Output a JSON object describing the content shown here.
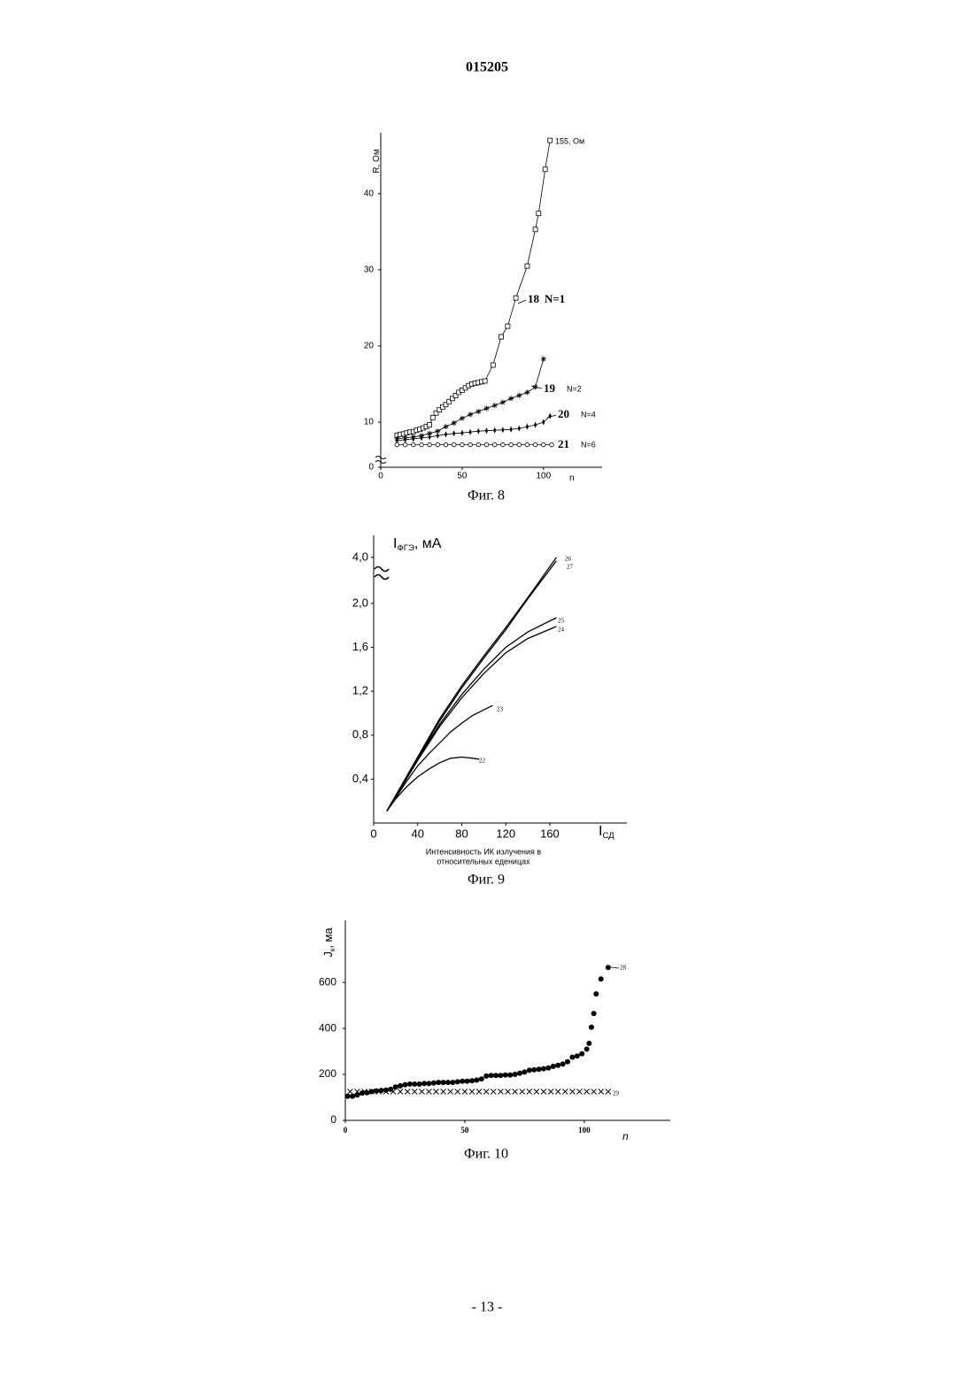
{
  "header": {
    "number": "015205"
  },
  "chart_data": [
    {
      "type": "line",
      "caption": "Фиг. 8",
      "ylabel": "R, Ом",
      "xlabel": "n",
      "annotation": "155, Ом",
      "xlim": [
        0,
        136
      ],
      "ylim": [
        0,
        48
      ],
      "y_break": [
        0,
        10
      ],
      "xticks": [
        0,
        50,
        100
      ],
      "yticks": [
        0,
        10,
        20,
        30,
        40
      ],
      "series": [
        {
          "name": "18",
          "note": "N=1",
          "marker": "square",
          "color": "#000000",
          "x": [
            10,
            12,
            14,
            16,
            18,
            20,
            22,
            24,
            26,
            28,
            30,
            32,
            34,
            36,
            38,
            40,
            42,
            44,
            46,
            48,
            50,
            52,
            54,
            56,
            58,
            60,
            62,
            64,
            69,
            74,
            78,
            83,
            90,
            95,
            97,
            101,
            104
          ],
          "values": [
            7.1,
            7.3,
            7.4,
            7.6,
            7.8,
            7.9,
            8.2,
            8.4,
            8.7,
            9.0,
            9.4,
            10.6,
            11.2,
            11.6,
            12.0,
            12.3,
            12.7,
            13.1,
            13.5,
            13.9,
            14.2,
            14.5,
            14.8,
            15.0,
            15.1,
            15.2,
            15.3,
            15.4,
            17.5,
            21.2,
            22.6,
            26.3,
            30.5,
            35.3,
            37.4,
            43.2,
            47
          ]
        },
        {
          "name": "19",
          "note": "N=2",
          "marker": "asterisk",
          "color": "#000000",
          "x": [
            10,
            15,
            20,
            25,
            30,
            35,
            40,
            45,
            50,
            55,
            60,
            65,
            70,
            75,
            80,
            85,
            90,
            95,
            100
          ],
          "values": [
            6.3,
            6.5,
            6.7,
            7.0,
            7.5,
            8.0,
            9.0,
            9.8,
            10.5,
            11.0,
            11.4,
            11.8,
            12.2,
            12.6,
            13.1,
            13.5,
            13.9,
            14.6,
            18.3
          ]
        },
        {
          "name": "20",
          "note": "N=4",
          "marker": "diamond",
          "color": "#000000",
          "x": [
            10,
            15,
            20,
            25,
            30,
            35,
            40,
            45,
            50,
            55,
            60,
            65,
            70,
            75,
            80,
            85,
            90,
            95,
            100,
            104
          ],
          "values": [
            5.9,
            6.1,
            6.3,
            6.5,
            6.7,
            7.0,
            7.3,
            7.5,
            7.6,
            7.8,
            8.0,
            8.1,
            8.2,
            8.3,
            8.4,
            8.6,
            9.0,
            9.4,
            10.0,
            10.8
          ]
        },
        {
          "name": "21",
          "note": "N=6",
          "marker": "circle",
          "color": "#000000",
          "x": [
            10,
            15,
            20,
            25,
            30,
            35,
            40,
            45,
            50,
            55,
            60,
            65,
            70,
            75,
            80,
            85,
            90,
            95,
            100,
            105
          ],
          "values": [
            5.0,
            5.0,
            5.0,
            5.0,
            5.0,
            5.0,
            5.0,
            5.0,
            5.0,
            5.0,
            5.0,
            5.0,
            5.0,
            5.0,
            5.0,
            5.0,
            5.0,
            5.0,
            5.0,
            5.0
          ]
        }
      ]
    },
    {
      "type": "line",
      "caption": "Фиг. 9",
      "ylabel": "I",
      "ylabel_sub": "ФГЭ",
      "ylabel_unit": ", мА",
      "xlabel": "I",
      "xlabel_sub": "СД",
      "xlabel_note": [
        "Интенсивность ИК излучения в",
        "относительных еденицах"
      ],
      "xlim": [
        0,
        230
      ],
      "ylim": [
        0,
        4.2
      ],
      "y_break": [
        2.0,
        4.0
      ],
      "xticks": [
        0,
        40,
        80,
        120,
        160
      ],
      "yticks": [
        {
          "value": 0.4,
          "label": "0,4"
        },
        {
          "value": 0.8,
          "label": "0,8"
        },
        {
          "value": 1.2,
          "label": "1,2"
        },
        {
          "value": 1.6,
          "label": "1,6"
        },
        {
          "value": 2.0,
          "label": "2,0"
        },
        {
          "value": 4.0,
          "label": "4,0"
        }
      ],
      "series": [
        {
          "name": "22",
          "color": "#000000",
          "x": [
            12,
            20,
            30,
            40,
            50,
            60,
            70,
            80,
            90,
            96
          ],
          "values": [
            0.11,
            0.22,
            0.33,
            0.42,
            0.49,
            0.55,
            0.59,
            0.6,
            0.59,
            0.58
          ]
        },
        {
          "name": "23",
          "color": "#000000",
          "x": [
            12,
            20,
            30,
            40,
            50,
            60,
            70,
            80,
            90,
            100,
            108
          ],
          "values": [
            0.11,
            0.23,
            0.38,
            0.52,
            0.63,
            0.73,
            0.83,
            0.91,
            0.98,
            1.03,
            1.07
          ]
        },
        {
          "name": "24",
          "color": "#000000",
          "x": [
            12,
            20,
            40,
            60,
            80,
            100,
            120,
            140,
            166
          ],
          "values": [
            0.11,
            0.24,
            0.57,
            0.88,
            1.14,
            1.36,
            1.55,
            1.68,
            1.79
          ]
        },
        {
          "name": "25",
          "color": "#000000",
          "x": [
            12,
            20,
            40,
            60,
            80,
            100,
            120,
            140,
            166
          ],
          "values": [
            0.11,
            0.24,
            0.58,
            0.9,
            1.17,
            1.4,
            1.6,
            1.74,
            1.87
          ]
        },
        {
          "name": "26",
          "color": "#000000",
          "x": [
            12,
            20,
            40,
            60,
            80,
            100,
            120,
            140,
            166
          ],
          "values": [
            0.11,
            0.25,
            0.6,
            0.95,
            1.25,
            1.52,
            1.78,
            2.25,
            4.0
          ]
        },
        {
          "name": "27",
          "color": "#000000",
          "x": [
            12,
            20,
            40,
            60,
            80,
            100,
            120,
            140,
            166
          ],
          "values": [
            0.11,
            0.25,
            0.59,
            0.93,
            1.23,
            1.5,
            1.76,
            2.2,
            3.85
          ]
        }
      ]
    },
    {
      "type": "scatter",
      "caption": "Фиг. 10",
      "ylabel": "J",
      "ylabel_sub": "к",
      "ylabel_unit": ", ма",
      "xlabel": "n",
      "xlim": [
        0,
        136
      ],
      "ylim": [
        0,
        870
      ],
      "xticks": [
        0,
        50,
        100
      ],
      "yticks": [
        0,
        200,
        400,
        600
      ],
      "series": [
        {
          "name": "28",
          "marker": "dot",
          "color": "#000000",
          "x": [
            1,
            3,
            5,
            7,
            9,
            11,
            13,
            15,
            17,
            19,
            21,
            23,
            25,
            27,
            29,
            31,
            33,
            35,
            37,
            39,
            41,
            43,
            45,
            47,
            49,
            51,
            53,
            55,
            57,
            59,
            61,
            63,
            65,
            67,
            69,
            71,
            73,
            75,
            77,
            79,
            81,
            83,
            85,
            87,
            89,
            91,
            93,
            95,
            97,
            99,
            101,
            102,
            103,
            104,
            105,
            107,
            110
          ],
          "values": [
            105,
            105,
            110,
            118,
            120,
            125,
            128,
            130,
            132,
            135,
            145,
            150,
            155,
            158,
            158,
            158,
            160,
            160,
            163,
            165,
            165,
            165,
            165,
            168,
            170,
            170,
            172,
            175,
            180,
            193,
            195,
            195,
            195,
            197,
            197,
            200,
            205,
            210,
            218,
            220,
            222,
            225,
            228,
            235,
            240,
            245,
            255,
            275,
            280,
            290,
            310,
            335,
            405,
            465,
            550,
            615,
            665
          ]
        },
        {
          "name": "29",
          "marker": "cross",
          "color": "#000000",
          "x": [
            2,
            5,
            8,
            11,
            14,
            17,
            20,
            23,
            26,
            29,
            32,
            35,
            38,
            41,
            44,
            47,
            50,
            53,
            56,
            59,
            62,
            65,
            68,
            71,
            74,
            77,
            80,
            83,
            86,
            89,
            92,
            95,
            98,
            101,
            104,
            107,
            110
          ],
          "values": [
            125,
            125,
            125,
            125,
            125,
            125,
            125,
            125,
            125,
            125,
            125,
            125,
            125,
            125,
            125,
            125,
            125,
            125,
            125,
            125,
            125,
            125,
            125,
            125,
            125,
            125,
            125,
            125,
            125,
            125,
            125,
            125,
            125,
            125,
            125,
            125,
            125
          ]
        }
      ]
    }
  ],
  "footer": {
    "page": "- 13 -"
  }
}
